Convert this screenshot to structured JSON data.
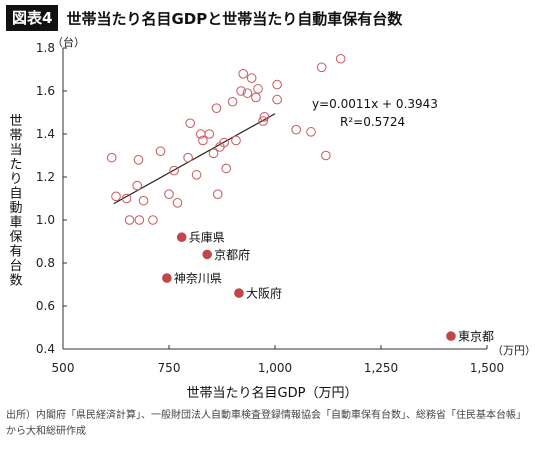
{
  "header": {
    "badge": "図表4",
    "title": "世帯当たり名目GDPと世帯当たり自動車保有台数"
  },
  "source": {
    "line1": "出所）内閣府「県民経済計算」、一般財団法人自動車検査登録情報協会「自動車保有台数」、総務省「住民基本台帳」",
    "line2": "から大和総研作成"
  },
  "colors": {
    "point_stroke": "#c8585c",
    "point_fill": "#c0474a",
    "axis": "#333333"
  },
  "chart_data": {
    "type": "scatter",
    "xlabel": "世帯当たり名目GDP（万円）",
    "ylabel": "世帯当たり自動車保有台数",
    "x_unit": "（万円）",
    "y_unit": "（台）",
    "xlim": [
      500,
      1500
    ],
    "ylim": [
      0.4,
      1.8
    ],
    "x_ticks": [
      500,
      750,
      1000,
      1250,
      1500
    ],
    "x_tick_labels": [
      "500",
      "750",
      "1,000",
      "1,250",
      "1,500"
    ],
    "y_ticks": [
      0.4,
      0.6,
      0.8,
      1.0,
      1.2,
      1.4,
      1.6,
      1.8
    ],
    "y_tick_labels": [
      "0.4",
      "0.6",
      "0.8",
      "1.0",
      "1.2",
      "1.4",
      "1.6",
      "1.8"
    ],
    "grid": false,
    "trendline": {
      "slope": 0.0011,
      "intercept": 0.3943,
      "x_range": [
        620,
        1000
      ],
      "equation": "y=0.0011x + 0.3943",
      "r2": "R²=0.5724"
    },
    "points": [
      {
        "x": 615,
        "y": 1.29
      },
      {
        "x": 625,
        "y": 1.11
      },
      {
        "x": 650,
        "y": 1.1
      },
      {
        "x": 657,
        "y": 1.0
      },
      {
        "x": 675,
        "y": 1.16
      },
      {
        "x": 678,
        "y": 1.28
      },
      {
        "x": 680,
        "y": 1.0
      },
      {
        "x": 690,
        "y": 1.09
      },
      {
        "x": 712,
        "y": 1.0
      },
      {
        "x": 730,
        "y": 1.32
      },
      {
        "x": 750,
        "y": 1.12
      },
      {
        "x": 762,
        "y": 1.23
      },
      {
        "x": 770,
        "y": 1.08
      },
      {
        "x": 795,
        "y": 1.29
      },
      {
        "x": 800,
        "y": 1.45
      },
      {
        "x": 815,
        "y": 1.21
      },
      {
        "x": 825,
        "y": 1.4
      },
      {
        "x": 830,
        "y": 1.37
      },
      {
        "x": 845,
        "y": 1.4
      },
      {
        "x": 855,
        "y": 1.31
      },
      {
        "x": 862,
        "y": 1.52
      },
      {
        "x": 865,
        "y": 1.12
      },
      {
        "x": 870,
        "y": 1.34
      },
      {
        "x": 880,
        "y": 1.36
      },
      {
        "x": 885,
        "y": 1.24
      },
      {
        "x": 900,
        "y": 1.55
      },
      {
        "x": 908,
        "y": 1.37
      },
      {
        "x": 920,
        "y": 1.6
      },
      {
        "x": 925,
        "y": 1.68
      },
      {
        "x": 935,
        "y": 1.59
      },
      {
        "x": 945,
        "y": 1.66
      },
      {
        "x": 955,
        "y": 1.57
      },
      {
        "x": 960,
        "y": 1.61
      },
      {
        "x": 972,
        "y": 1.46
      },
      {
        "x": 975,
        "y": 1.48
      },
      {
        "x": 1005,
        "y": 1.63
      },
      {
        "x": 1005,
        "y": 1.56
      },
      {
        "x": 1050,
        "y": 1.42
      },
      {
        "x": 1085,
        "y": 1.41
      },
      {
        "x": 1110,
        "y": 1.71
      },
      {
        "x": 1120,
        "y": 1.3
      },
      {
        "x": 1155,
        "y": 1.75
      }
    ],
    "highlighted": [
      {
        "name": "兵庫県",
        "x": 780,
        "y": 0.92
      },
      {
        "name": "京都府",
        "x": 840,
        "y": 0.84
      },
      {
        "name": "神奈川県",
        "x": 745,
        "y": 0.73
      },
      {
        "name": "大阪府",
        "x": 915,
        "y": 0.66
      },
      {
        "name": "東京都",
        "x": 1415,
        "y": 0.46
      }
    ]
  }
}
